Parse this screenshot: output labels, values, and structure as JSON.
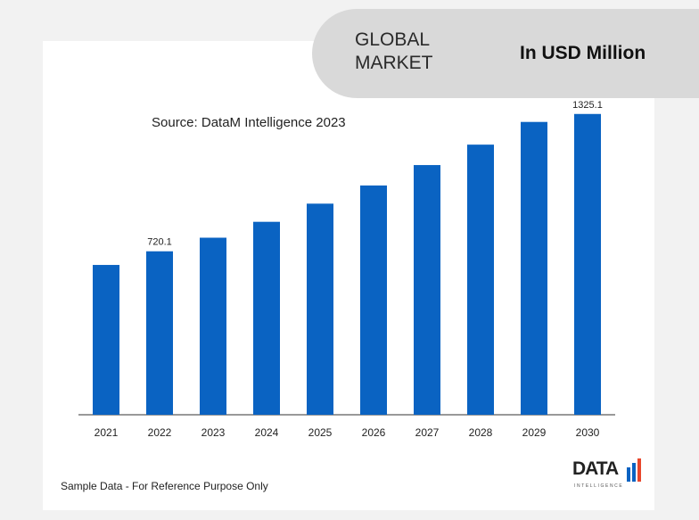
{
  "header": {
    "market_label_line1": "GLOBAL",
    "market_label_line2": "MARKET",
    "unit_label": "In USD Million"
  },
  "source": "Source: DataM Intelligence 2023",
  "footer_note": "Sample Data - For Reference Purpose Only",
  "logo": {
    "word": "DATA",
    "sub": "INTELLIGENCE",
    "icon": "bar-logo-icon"
  },
  "colors": {
    "bar": "#0a63c2",
    "axis": "#333333",
    "header_bg": "#d9d9d9",
    "accent": "#e8462b"
  },
  "chart_data": {
    "type": "bar",
    "categories": [
      "2021",
      "2022",
      "2023",
      "2024",
      "2025",
      "2026",
      "2027",
      "2028",
      "2029",
      "2030"
    ],
    "values": [
      660,
      720.1,
      780,
      850,
      930,
      1010,
      1100,
      1190,
      1290,
      1325.1
    ],
    "data_labels": {
      "2022": "720.1",
      "2030": "1325.1"
    },
    "title": "",
    "xlabel": "",
    "ylabel": "",
    "ylim": [
      0,
      1670
    ],
    "grid": false,
    "legend": "none"
  }
}
